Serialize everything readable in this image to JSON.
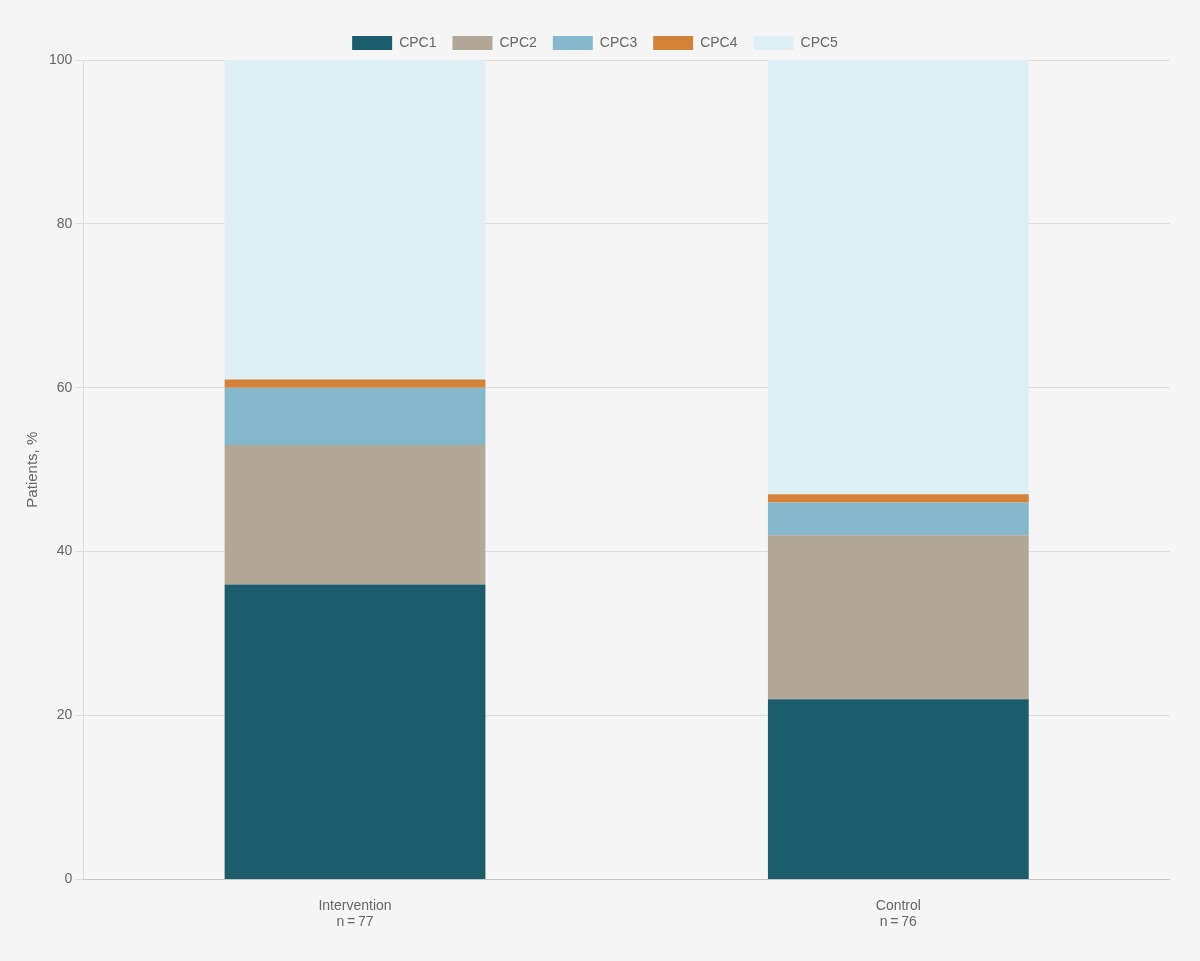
{
  "chart_data": {
    "type": "bar",
    "stacked": true,
    "ylabel": "Patients, %",
    "categories": [
      "Intervention\nn = 77",
      "Control\nn = 76"
    ],
    "series": [
      {
        "name": "CPC1",
        "color": "#1d5c6a",
        "values": [
          36,
          22
        ]
      },
      {
        "name": "CPC2",
        "color": "#b3a898",
        "values": [
          17,
          20
        ]
      },
      {
        "name": "CPC3",
        "color": "#84b8ca",
        "values": [
          7,
          4
        ]
      },
      {
        "name": "CPC4",
        "color": "#d4813a",
        "values": [
          1,
          1
        ]
      },
      {
        "name": "CPC5",
        "color": "#deeef5",
        "values": [
          39,
          53
        ]
      }
    ],
    "ylim": [
      0,
      100
    ],
    "yticks": [
      0,
      20,
      40,
      60,
      80,
      100
    ],
    "grid": true,
    "legend": "top"
  }
}
